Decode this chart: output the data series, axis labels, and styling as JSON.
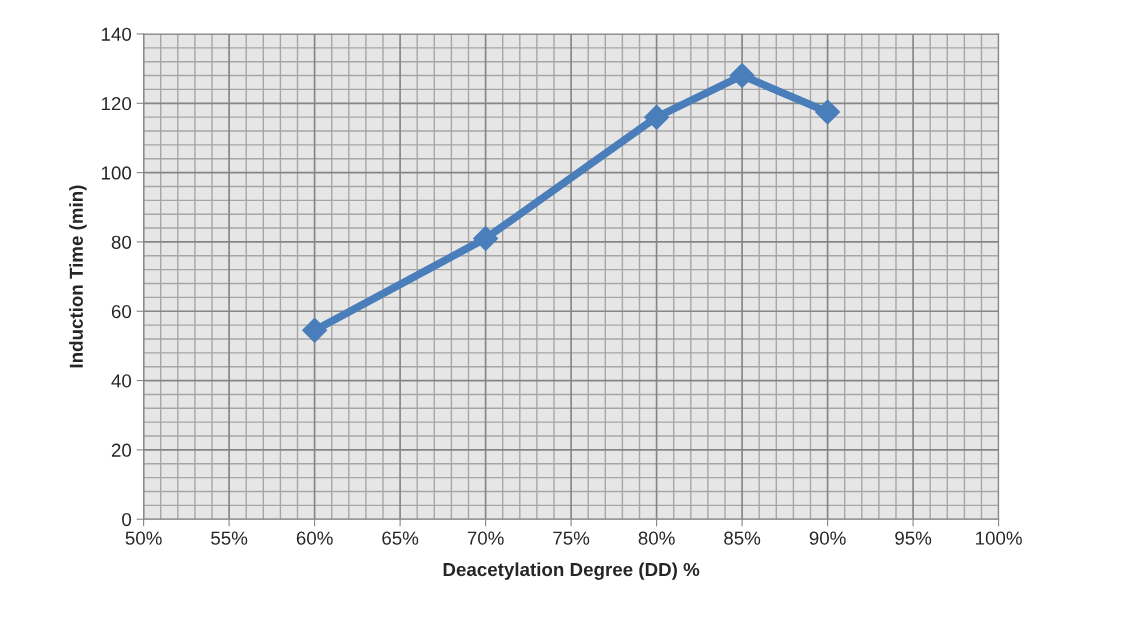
{
  "chart_data": {
    "type": "line",
    "xlabel": "Deacetylation Degree (DD) %",
    "ylabel": "Induction Time (min)",
    "x": [
      60,
      70,
      80,
      85,
      90
    ],
    "series": [
      {
        "color": "#4a7ebb",
        "values": [
          54.5,
          81,
          116,
          128,
          117.5
        ]
      }
    ],
    "xlim": [
      50,
      100
    ],
    "xticks": [
      {
        "value": 50,
        "label": "50%"
      },
      {
        "value": 55,
        "label": "55%"
      },
      {
        "value": 60,
        "label": "60%"
      },
      {
        "value": 65,
        "label": "65%"
      },
      {
        "value": 70,
        "label": "70%"
      },
      {
        "value": 75,
        "label": "75%"
      },
      {
        "value": 80,
        "label": "80%"
      },
      {
        "value": 85,
        "label": "85%"
      },
      {
        "value": 90,
        "label": "90%"
      },
      {
        "value": 95,
        "label": "95%"
      },
      {
        "value": 100,
        "label": "100%"
      }
    ],
    "ylim": [
      0,
      140
    ],
    "yticks": [
      0,
      20,
      40,
      60,
      80,
      100,
      120,
      140
    ],
    "grid": true,
    "marker": "diamond",
    "line_style": "solid"
  }
}
